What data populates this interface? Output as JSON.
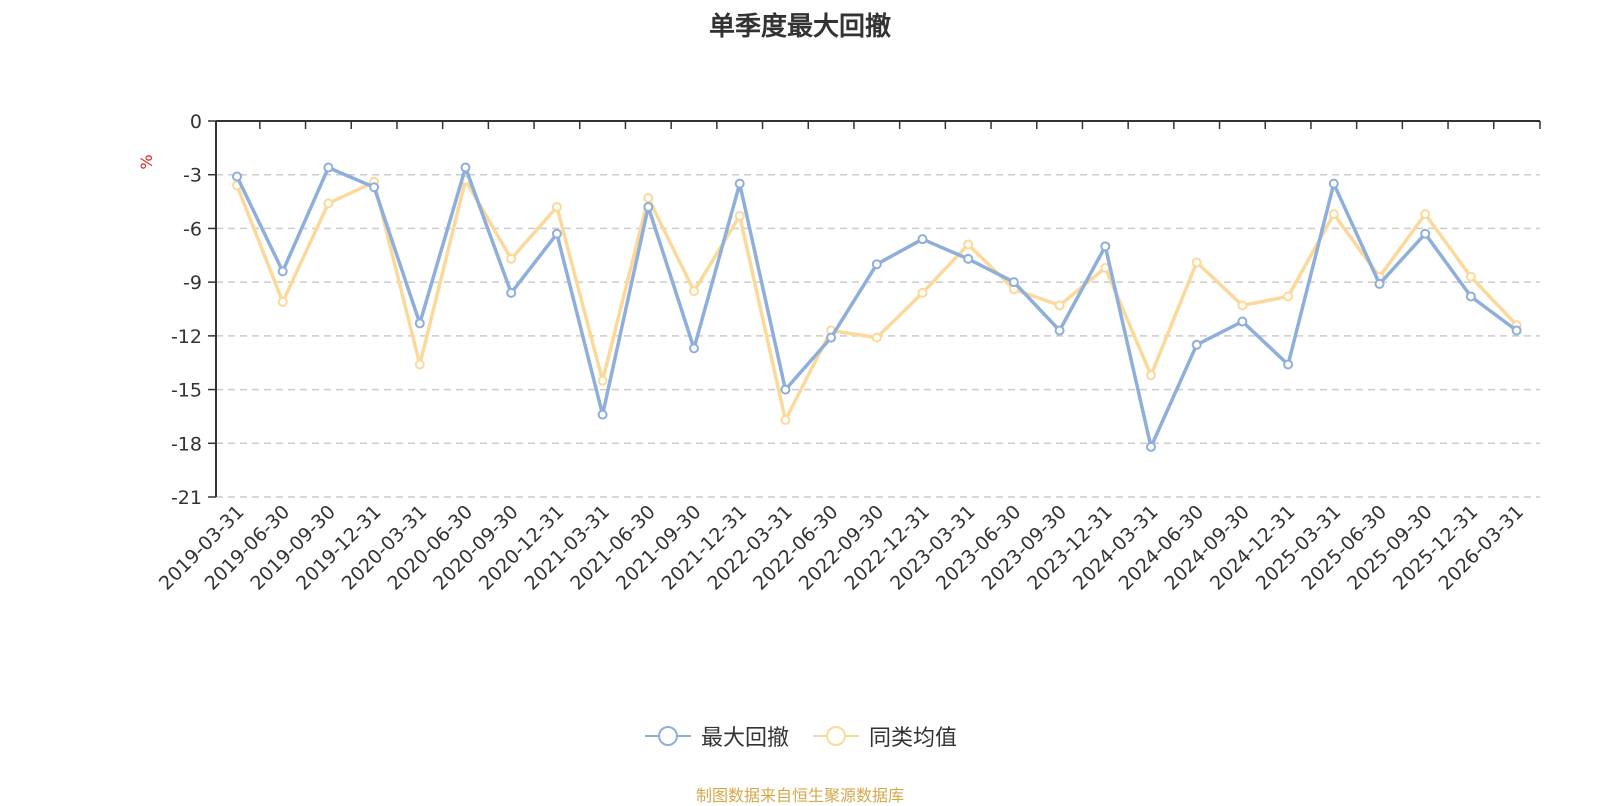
{
  "title": "单季度最大回撤",
  "source_note": "制图数据来自恒生聚源数据库",
  "colors": {
    "series1": "#8eaedb",
    "series2": "#fcd99a",
    "unit": "#e02020",
    "source": "#d4a84b",
    "grid": "#cccccc",
    "axis": "#333333"
  },
  "chart_data": {
    "type": "line",
    "title": "单季度最大回撤",
    "ylabel": "%",
    "xlabel": "",
    "ylim": [
      -21,
      0
    ],
    "yticks": [
      0,
      -3,
      -6,
      -9,
      -12,
      -15,
      -18,
      -21
    ],
    "ytick_labels": [
      "0",
      "-3",
      "-6",
      "-9",
      "-12",
      "-15",
      "-18",
      "-21"
    ],
    "grid": true,
    "legend_position": "bottom-center",
    "categories": [
      "2019-03-31",
      "2019-06-30",
      "2019-09-30",
      "2019-12-31",
      "2020-03-31",
      "2020-06-30",
      "2020-09-30",
      "2020-12-31",
      "2021-03-31",
      "2021-06-30",
      "2021-09-30",
      "2021-12-31",
      "2022-03-31",
      "2022-06-30",
      "2022-09-30",
      "2022-12-31",
      "2023-03-31",
      "2023-06-30",
      "2023-09-30",
      "2023-12-31",
      "2024-03-31",
      "2024-06-30",
      "2024-09-30",
      "2024-12-31",
      "2025-03-31",
      "2025-06-30",
      "2025-09-30",
      "2025-12-31",
      "2026-03-31"
    ],
    "series": [
      {
        "name": "最大回撤",
        "values": [
          -3.1,
          -8.4,
          -2.6,
          -3.7,
          -11.3,
          -2.6,
          -9.6,
          -6.3,
          -16.4,
          -4.8,
          -12.7,
          -3.5,
          -15.0,
          -12.1,
          -8.0,
          -6.6,
          -7.7,
          -9.0,
          -11.7,
          -7.0,
          -18.2,
          -12.5,
          -11.2,
          -13.6,
          -3.5,
          -9.1,
          -6.3,
          -9.8,
          -11.7
        ],
        "color": "#8eaedb"
      },
      {
        "name": "同类均值",
        "values": [
          -3.6,
          -10.1,
          -4.6,
          -3.4,
          -13.6,
          -3.3,
          -7.7,
          -4.8,
          -14.5,
          -4.3,
          -9.5,
          -5.3,
          -16.7,
          -11.7,
          -12.1,
          -9.6,
          -6.9,
          -9.4,
          -10.3,
          -8.2,
          -14.2,
          -7.9,
          -10.3,
          -9.8,
          -5.2,
          -8.7,
          -5.2,
          -8.7,
          -11.4
        ],
        "color": "#fcd99a"
      }
    ]
  }
}
